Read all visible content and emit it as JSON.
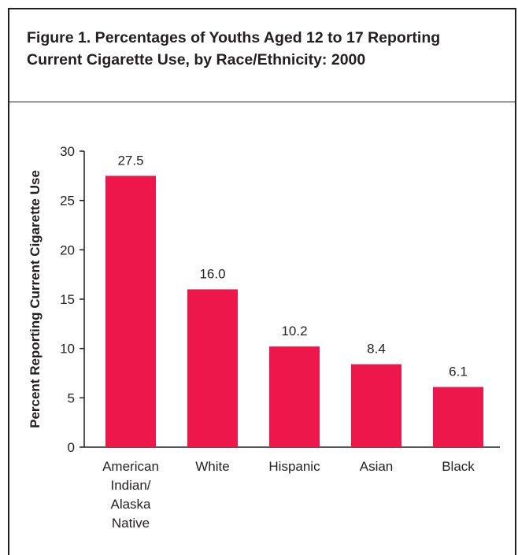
{
  "chart_data": {
    "type": "bar",
    "title": "Figure 1.  Percentages of Youths Aged 12 to 17 Reporting Current Cigarette Use, by Race/Ethnicity: 2000",
    "xlabel": "",
    "ylabel": "Percent Reporting Current Cigarette Use",
    "categories": [
      [
        "American",
        "Indian/",
        "Alaska",
        "Native"
      ],
      [
        "White"
      ],
      [
        "Hispanic"
      ],
      [
        "Asian"
      ],
      [
        "Black"
      ]
    ],
    "values": [
      27.5,
      16.0,
      10.2,
      8.4,
      6.1
    ],
    "value_labels": [
      "27.5",
      "16.0",
      "10.2",
      "8.4",
      "6.1"
    ],
    "ylim": [
      0,
      30
    ],
    "yticks": [
      "0",
      "5",
      "10",
      "15",
      "20",
      "25",
      "30"
    ],
    "grid": false,
    "bar_color": "#ed174c"
  }
}
